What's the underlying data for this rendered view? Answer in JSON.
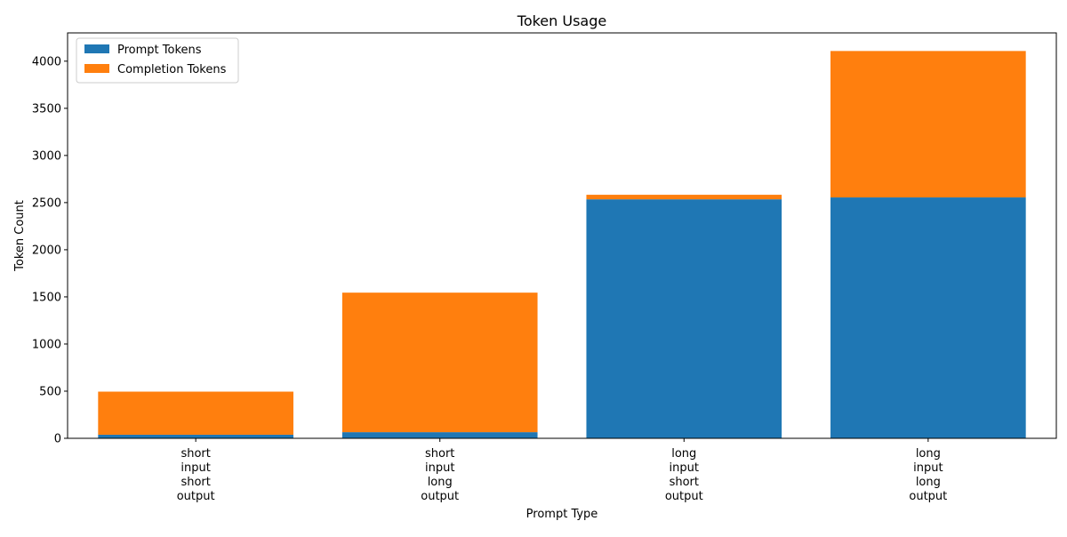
{
  "chart_data": {
    "type": "bar",
    "stacked": true,
    "title": "Token Usage",
    "xlabel": "Prompt Type",
    "ylabel": "Token Count",
    "categories": [
      [
        "short",
        "input",
        "short",
        "output"
      ],
      [
        "short",
        "input",
        "long",
        "output"
      ],
      [
        "long",
        "input",
        "short",
        "output"
      ],
      [
        "long",
        "input",
        "long",
        "output"
      ]
    ],
    "series": [
      {
        "name": "Prompt Tokens",
        "color": "#1f77b4",
        "values": [
          38,
          65,
          2535,
          2555
        ]
      },
      {
        "name": "Completion Tokens",
        "color": "#ff7f0e",
        "values": [
          457,
          1480,
          48,
          1553
        ]
      }
    ],
    "ylim": [
      0,
      4300
    ],
    "yticks": [
      0,
      500,
      1000,
      1500,
      2000,
      2500,
      3000,
      3500,
      4000
    ],
    "grid": false,
    "legend_position": "top-left"
  }
}
